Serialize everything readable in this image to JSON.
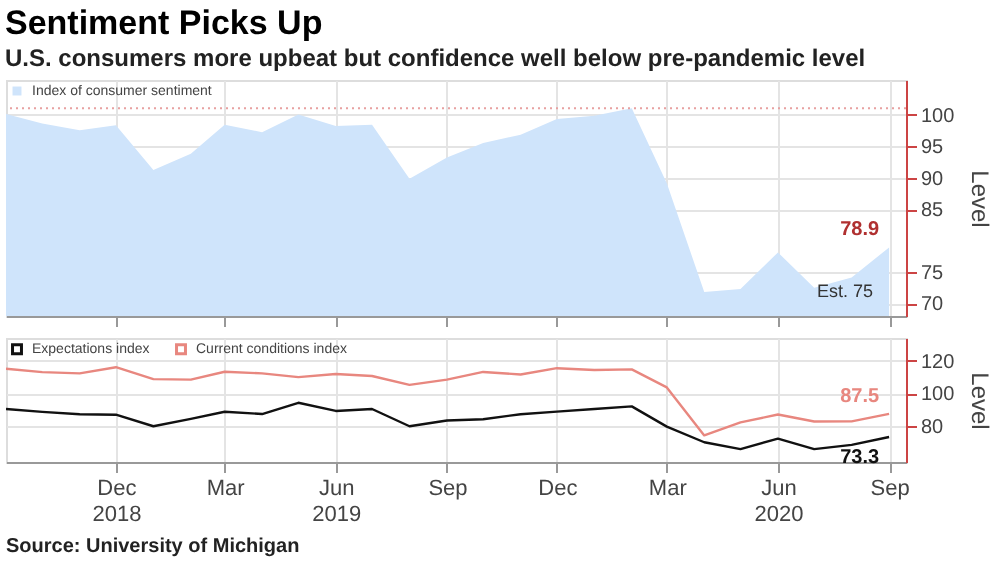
{
  "chart_data": [
    {
      "type": "area",
      "title": "Sentiment Picks Up",
      "subtitle": "U.S. consumers more upbeat but confidence well below pre-pandemic level",
      "ylabel": "Level",
      "x": [
        "2018-09",
        "2018-10",
        "2018-11",
        "2018-12",
        "2019-01",
        "2019-02",
        "2019-03",
        "2019-04",
        "2019-05",
        "2019-06",
        "2019-07",
        "2019-08",
        "2019-09",
        "2019-10",
        "2019-11",
        "2019-12",
        "2020-01",
        "2020-02",
        "2020-03",
        "2020-04",
        "2020-05",
        "2020-06",
        "2020-07",
        "2020-08",
        "2020-09"
      ],
      "series": [
        {
          "name": "Index of consumer sentiment",
          "color": "#cfe4fb",
          "values": [
            100.1,
            98.6,
            97.5,
            98.3,
            91.2,
            93.8,
            98.4,
            97.2,
            100.0,
            98.2,
            98.4,
            89.8,
            93.2,
            95.5,
            96.8,
            99.3,
            99.8,
            101.0,
            89.1,
            71.8,
            72.3,
            78.1,
            72.5,
            74.1,
            78.9
          ],
          "value_labels": [
            null,
            null,
            null,
            null,
            null,
            null,
            null,
            null,
            null,
            null,
            null,
            null,
            null,
            null,
            null,
            null,
            null,
            null,
            null,
            null,
            null,
            null,
            null,
            null,
            "78.9"
          ]
        }
      ],
      "xlim": [
        "2018-09-01",
        "2020-09-15"
      ],
      "ylim": [
        68,
        105.5
      ],
      "yticks": [
        70,
        75,
        85,
        90,
        95,
        100
      ],
      "xticks": [
        {
          "value": "2018-12",
          "label": null
        },
        {
          "value": "2019-03",
          "label": null
        },
        {
          "value": "2019-06",
          "label": null
        },
        {
          "value": "2019-09",
          "label": null
        },
        {
          "value": "2019-12",
          "label": null
        },
        {
          "value": "2020-03",
          "label": null
        },
        {
          "value": "2020-06",
          "label": null
        },
        {
          "value": "2020-09",
          "label": null
        }
      ],
      "tick_labels": "y",
      "grid": true,
      "legend": "top left",
      "ref_lines": [
        {
          "axis": "y",
          "value": 101,
          "color": "#e8a0a0",
          "line_style": "dotted"
        }
      ],
      "annotations": [
        {
          "text": "Est. 75",
          "x": "2020-09",
          "y": 78.9
        }
      ]
    },
    {
      "type": "line",
      "ylabel": "Level",
      "x": [
        "2018-09",
        "2018-10",
        "2018-11",
        "2018-12",
        "2019-01",
        "2019-02",
        "2019-03",
        "2019-04",
        "2019-05",
        "2019-06",
        "2019-07",
        "2019-08",
        "2019-09",
        "2019-10",
        "2019-11",
        "2019-12",
        "2020-01",
        "2020-02",
        "2020-03",
        "2020-04",
        "2020-05",
        "2020-06",
        "2020-07",
        "2020-08",
        "2020-09"
      ],
      "series": [
        {
          "name": "Expectations index",
          "color": "#111111",
          "values": [
            90.5,
            88.7,
            87.3,
            87.0,
            79.9,
            84.4,
            88.8,
            87.4,
            94.3,
            89.3,
            90.5,
            79.9,
            83.4,
            84.2,
            87.3,
            88.9,
            90.5,
            92.1,
            79.7,
            70.1,
            65.9,
            72.3,
            65.9,
            68.5,
            73.3
          ],
          "value_labels": [
            null,
            null,
            null,
            null,
            null,
            null,
            null,
            null,
            null,
            null,
            null,
            null,
            null,
            null,
            null,
            null,
            null,
            null,
            null,
            null,
            null,
            null,
            null,
            null,
            "73.3"
          ]
        },
        {
          "name": "Current conditions index",
          "color": "#e8877f",
          "values": [
            115.2,
            113.1,
            112.3,
            116.1,
            108.8,
            108.5,
            113.3,
            112.3,
            110.0,
            111.9,
            110.7,
            105.3,
            108.5,
            113.2,
            111.6,
            115.5,
            114.4,
            114.8,
            103.7,
            74.3,
            82.3,
            87.1,
            82.8,
            82.9,
            87.5
          ],
          "value_labels": [
            null,
            null,
            null,
            null,
            null,
            null,
            null,
            null,
            null,
            null,
            null,
            null,
            null,
            null,
            null,
            null,
            null,
            null,
            null,
            null,
            null,
            null,
            null,
            null,
            "87.5"
          ]
        }
      ],
      "xlim": [
        "2018-09-01",
        "2020-09-15"
      ],
      "ylim": [
        58,
        134
      ],
      "yticks": [
        80,
        100,
        120
      ],
      "xticks": [
        {
          "value": "2018-12",
          "label": "Dec\n2018"
        },
        {
          "value": "2019-03",
          "label": "Mar"
        },
        {
          "value": "2019-06",
          "label": "Jun\n2019"
        },
        {
          "value": "2019-09",
          "label": "Sep"
        },
        {
          "value": "2019-12",
          "label": "Dec"
        },
        {
          "value": "2020-03",
          "label": "Mar"
        },
        {
          "value": "2020-06",
          "label": "Jun\n2020"
        },
        {
          "value": "2020-09",
          "label": "Sep"
        }
      ],
      "grid": true,
      "legend": "top left",
      "annotations": [
        "Source: University of Michigan"
      ]
    }
  ]
}
